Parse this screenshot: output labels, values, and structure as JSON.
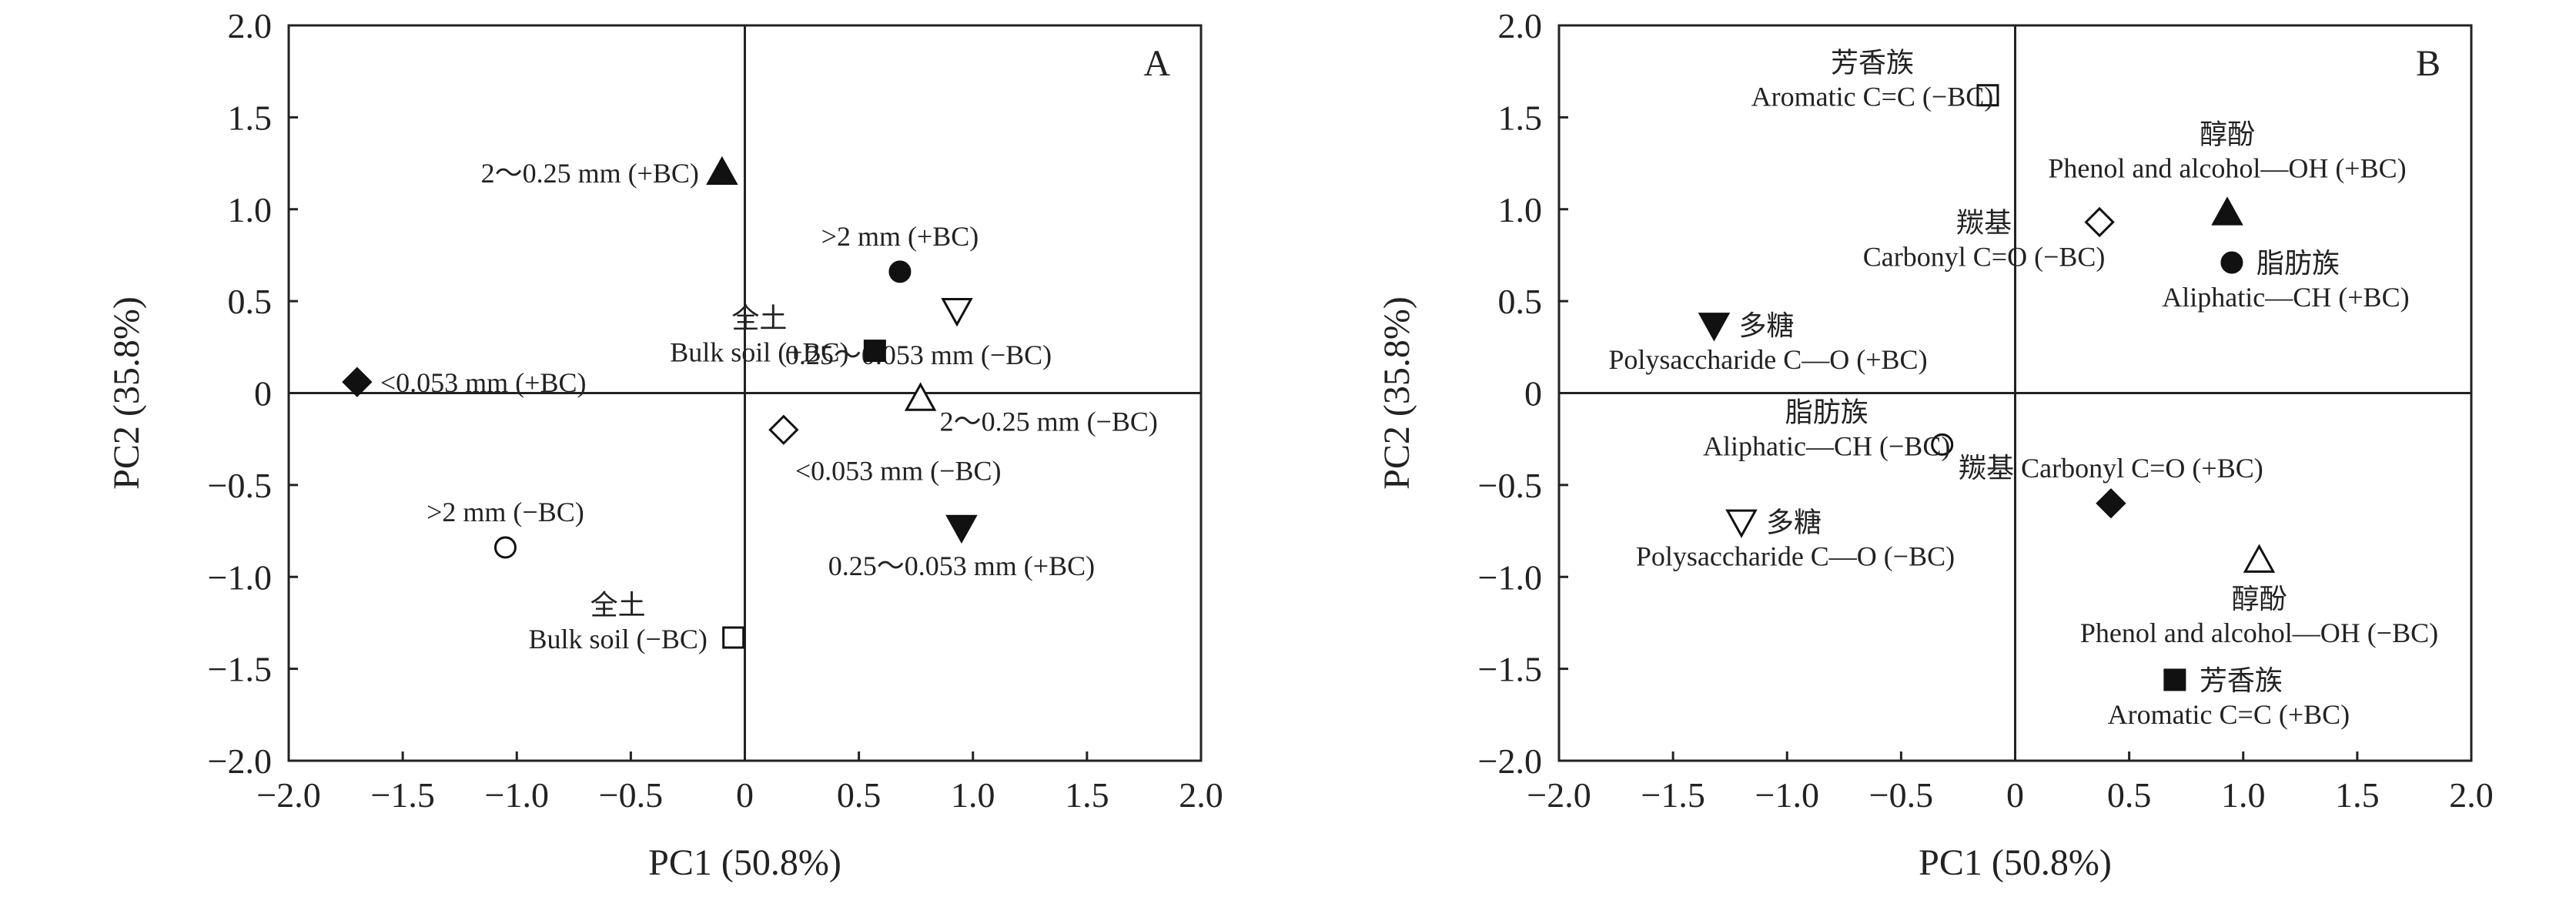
{
  "chart_data": [
    {
      "type": "scatter",
      "panel_label": "A",
      "xlabel": "PC1 (50.8%)",
      "ylabel": "PC2 (35.8%)",
      "xlim": [
        -2.0,
        2.0
      ],
      "ylim": [
        -2.0,
        2.0
      ],
      "xticks": [
        "−2.0",
        "−1.5",
        "−1.0",
        "−0.5",
        "0",
        "0.5",
        "1.0",
        "1.5",
        "2.0"
      ],
      "yticks": [
        "2.0",
        "1.5",
        "1.0",
        "0.5",
        "0",
        "−0.5",
        "−1.0",
        "−1.5",
        "−2.0"
      ],
      "grid": false,
      "zero_lines": true,
      "points": [
        {
          "x": -0.1,
          "y": 1.2,
          "marker": "triangle-up",
          "filled": true,
          "lines": [
            "2～0.25 mm (+BC)"
          ],
          "label_pos": "left"
        },
        {
          "x": 0.68,
          "y": 0.66,
          "marker": "circle",
          "filled": true,
          "lines": [
            ">2 mm (+BC)"
          ],
          "label_pos": "above"
        },
        {
          "x": 0.93,
          "y": 0.45,
          "marker": "triangle-down",
          "filled": false,
          "lines": [
            "0.25～0.053 mm (−BC)"
          ],
          "label_pos": "below-left"
        },
        {
          "x": 0.57,
          "y": 0.23,
          "marker": "square",
          "filled": true,
          "lines": [
            "全土",
            "Bulk soil (+BC)"
          ],
          "label_pos": "left-stack"
        },
        {
          "x": -1.7,
          "y": 0.06,
          "marker": "diamond",
          "filled": true,
          "lines": [
            "<0.053 mm (+BC)"
          ],
          "label_pos": "right"
        },
        {
          "x": 0.77,
          "y": -0.03,
          "marker": "triangle-up",
          "filled": false,
          "lines": [
            "2～0.25 mm (−BC)"
          ],
          "label_pos": "right-low"
        },
        {
          "x": 0.17,
          "y": -0.2,
          "marker": "diamond",
          "filled": false,
          "lines": [
            "<0.053 mm (−BC)"
          ],
          "label_pos": "below-right"
        },
        {
          "x": -1.05,
          "y": -0.84,
          "marker": "circle",
          "filled": false,
          "lines": [
            ">2 mm (−BC)"
          ],
          "label_pos": "above"
        },
        {
          "x": 0.95,
          "y": -0.73,
          "marker": "triangle-down",
          "filled": true,
          "lines": [
            "0.25～0.053 mm (+BC)"
          ],
          "label_pos": "below"
        },
        {
          "x": -0.05,
          "y": -1.33,
          "marker": "square",
          "filled": false,
          "lines": [
            "全土",
            "Bulk soil (−BC)"
          ],
          "label_pos": "left-stack"
        }
      ]
    },
    {
      "type": "scatter",
      "panel_label": "B",
      "xlabel": "PC1 (50.8%)",
      "ylabel": "PC2 (35.8%)",
      "xlim": [
        -2.0,
        2.0
      ],
      "ylim": [
        -2.0,
        2.0
      ],
      "xticks": [
        "−2.0",
        "−1.5",
        "−1.0",
        "−0.5",
        "0",
        "0.5",
        "1.0",
        "1.5",
        "2.0"
      ],
      "yticks": [
        "2.0",
        "1.5",
        "1.0",
        "0.5",
        "0",
        "−0.5",
        "−1.0",
        "−1.5",
        "−2.0"
      ],
      "grid": false,
      "zero_lines": true,
      "points": [
        {
          "x": -0.12,
          "y": 1.62,
          "marker": "square",
          "filled": false,
          "lines": [
            "芳香族",
            "Aromatic C=C (−BC)"
          ],
          "label_pos": "left-stack"
        },
        {
          "x": 0.93,
          "y": 0.98,
          "marker": "triangle-up",
          "filled": true,
          "lines": [
            "醇酚",
            "Phenol and alcohol—OH (+BC)"
          ],
          "label_pos": "above-stack"
        },
        {
          "x": 0.37,
          "y": 0.93,
          "marker": "diamond",
          "filled": false,
          "lines": [
            "羰基",
            "Carbonyl C=O (−BC)"
          ],
          "label_pos": "left-stack-down"
        },
        {
          "x": 0.95,
          "y": 0.71,
          "marker": "circle",
          "filled": true,
          "lines": [
            "脂肪族",
            "Aliphatic—CH (+BC)"
          ],
          "label_pos": "right-stack"
        },
        {
          "x": -1.32,
          "y": 0.37,
          "marker": "triangle-down",
          "filled": true,
          "lines": [
            "多糖",
            "Polysaccharide C—O (+BC)"
          ],
          "label_pos": "right-stack"
        },
        {
          "x": -0.32,
          "y": -0.28,
          "marker": "circle",
          "filled": false,
          "lines": [
            "脂肪族",
            "Aliphatic—CH (−BC)"
          ],
          "label_pos": "left-stack"
        },
        {
          "x": 0.42,
          "y": -0.6,
          "marker": "diamond",
          "filled": true,
          "lines": [
            "羰基 Carbonyl C=O (+BC)"
          ],
          "label_pos": "above"
        },
        {
          "x": -1.2,
          "y": -0.7,
          "marker": "triangle-down",
          "filled": false,
          "lines": [
            "多糖",
            "Polysaccharide C—O (−BC)"
          ],
          "label_pos": "right-stack"
        },
        {
          "x": 1.07,
          "y": -0.91,
          "marker": "triangle-up",
          "filled": false,
          "lines": [
            "醇酚",
            "Phenol and alcohol—OH (−BC)"
          ],
          "label_pos": "below-stack"
        },
        {
          "x": 0.7,
          "y": -1.56,
          "marker": "square",
          "filled": true,
          "lines": [
            "芳香族",
            "Aromatic C=C (+BC)"
          ],
          "label_pos": "right-stack"
        }
      ]
    }
  ]
}
